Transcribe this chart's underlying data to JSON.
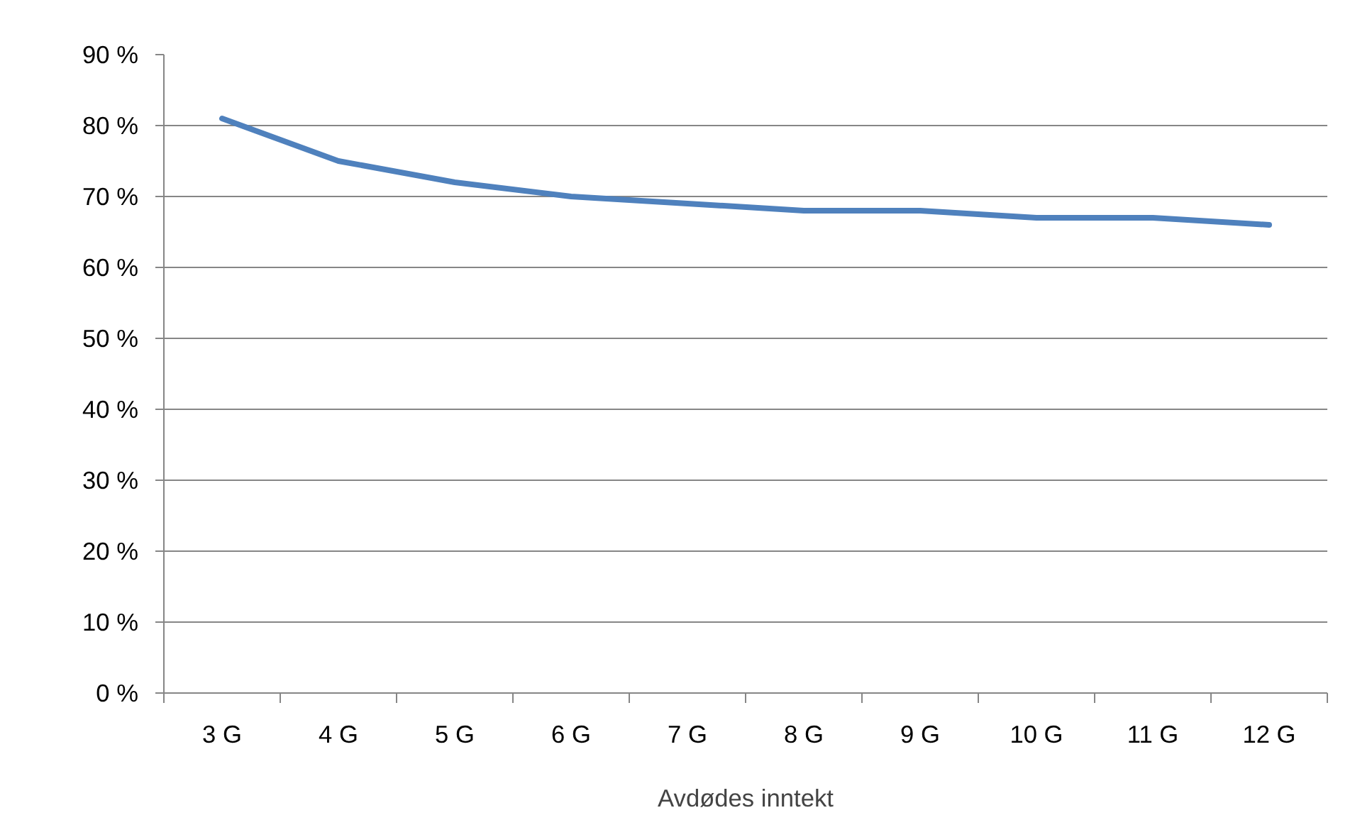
{
  "chart_data": {
    "type": "line",
    "xlabel": "Avdødes inntekt",
    "categories": [
      "3 G",
      "4 G",
      "5 G",
      "6 G",
      "7 G",
      "8 G",
      "9 G",
      "10 G",
      "11 G",
      "12 G"
    ],
    "series": [
      {
        "color": "#4f81bd",
        "values": [
          81,
          75,
          72,
          70,
          69,
          68,
          68,
          67,
          67,
          66
        ]
      }
    ],
    "ylim": [
      0,
      90
    ],
    "yticks": [
      {
        "value": 0,
        "label": "0 %"
      },
      {
        "value": 10,
        "label": "10 %"
      },
      {
        "value": 20,
        "label": "20 %"
      },
      {
        "value": 30,
        "label": "30 %"
      },
      {
        "value": 40,
        "label": "40 %"
      },
      {
        "value": 50,
        "label": "50 %"
      },
      {
        "value": 60,
        "label": "60 %"
      },
      {
        "value": 70,
        "label": "70 %"
      },
      {
        "value": 80,
        "label": "80 %"
      },
      {
        "value": 90,
        "label": "90 %"
      }
    ],
    "grid": "y",
    "marker": "none",
    "line_style": "solid"
  }
}
